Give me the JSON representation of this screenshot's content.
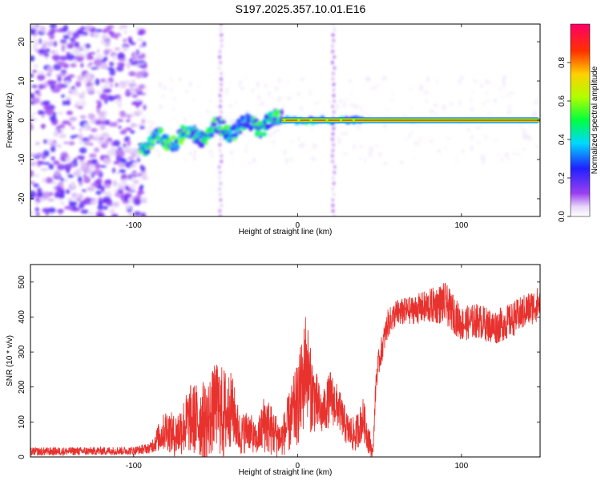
{
  "title": "S197.2025.357.10.01.E16",
  "colors": {
    "snr_line": "#e8322e",
    "axis": "#000000",
    "background": "#ffffff"
  },
  "chart_data": [
    {
      "type": "heatmap",
      "name": "spectrogram",
      "xlabel": "Height of straight line (km)",
      "ylabel": "Frequency (Hz)",
      "xlim": [
        -163,
        148
      ],
      "ylim": [
        -24.5,
        24.5
      ],
      "xticks": [
        -100,
        0,
        100
      ],
      "xtick_labels": [
        "-100",
        "0",
        "100"
      ],
      "yticks": [
        -20,
        -10,
        0,
        10,
        20
      ],
      "ytick_labels": [
        "-20",
        "-10",
        "0",
        "10",
        "20"
      ],
      "features": {
        "noise_region_x": [
          -163,
          -95
        ],
        "drifting_signal_x": [
          -95,
          -10
        ],
        "drifting_signal_freq": [
          -6,
          0
        ],
        "steady_tone_x": [
          -10,
          148
        ],
        "steady_tone_freq": 0,
        "vertical_streaks_x": [
          -47,
          22
        ]
      },
      "colorbar": {
        "label": "Normalized spectral amplitude",
        "range": [
          0,
          1
        ],
        "ticks": [
          0.0,
          0.2,
          0.4,
          0.6,
          0.8
        ],
        "tick_labels": [
          "0.0",
          "0.2",
          "0.4",
          "0.6",
          "0.8"
        ],
        "stops": [
          {
            "v": 0.0,
            "color": "#ffffff"
          },
          {
            "v": 0.05,
            "color": "#e8d8f8"
          },
          {
            "v": 0.12,
            "color": "#9a40f0"
          },
          {
            "v": 0.25,
            "color": "#2020ff"
          },
          {
            "v": 0.38,
            "color": "#00d8ff"
          },
          {
            "v": 0.5,
            "color": "#00ff40"
          },
          {
            "v": 0.62,
            "color": "#b0ff00"
          },
          {
            "v": 0.74,
            "color": "#ffd000"
          },
          {
            "v": 0.86,
            "color": "#ff3000"
          },
          {
            "v": 1.0,
            "color": "#ff0066"
          }
        ]
      }
    },
    {
      "type": "line",
      "name": "snr",
      "xlabel": "Height of straight line (km)",
      "ylabel": "SNR (10 * v/v)",
      "xlim": [
        -163,
        148
      ],
      "ylim": [
        0,
        550
      ],
      "xticks": [
        -100,
        0,
        100
      ],
      "xtick_labels": [
        "-100",
        "0",
        "100"
      ],
      "yticks": [
        0,
        100,
        200,
        300,
        400,
        500
      ],
      "ytick_labels": [
        "0",
        "100",
        "200",
        "300",
        "400",
        "500"
      ],
      "envelope": {
        "x": [
          -163,
          -100,
          -90,
          -85,
          -80,
          -75,
          -65,
          -55,
          -50,
          -45,
          -40,
          -35,
          -30,
          -25,
          -20,
          -15,
          -10,
          -5,
          0,
          3,
          5,
          8,
          10,
          15,
          20,
          25,
          30,
          35,
          40,
          44,
          46,
          48,
          50,
          55,
          60,
          70,
          80,
          90,
          100,
          110,
          120,
          130,
          140,
          148
        ],
        "mean": [
          15,
          18,
          25,
          55,
          80,
          60,
          110,
          100,
          150,
          120,
          140,
          60,
          80,
          45,
          100,
          70,
          50,
          100,
          150,
          200,
          280,
          190,
          170,
          120,
          170,
          140,
          80,
          60,
          110,
          40,
          10,
          230,
          280,
          380,
          410,
          420,
          430,
          440,
          380,
          390,
          370,
          390,
          420,
          440
        ],
        "amp": [
          12,
          12,
          15,
          40,
          60,
          60,
          100,
          120,
          120,
          140,
          100,
          60,
          60,
          40,
          90,
          70,
          50,
          90,
          120,
          150,
          150,
          120,
          100,
          60,
          80,
          60,
          50,
          50,
          60,
          40,
          10,
          40,
          40,
          40,
          40,
          40,
          50,
          60,
          50,
          50,
          50,
          50,
          50,
          50
        ]
      }
    }
  ]
}
